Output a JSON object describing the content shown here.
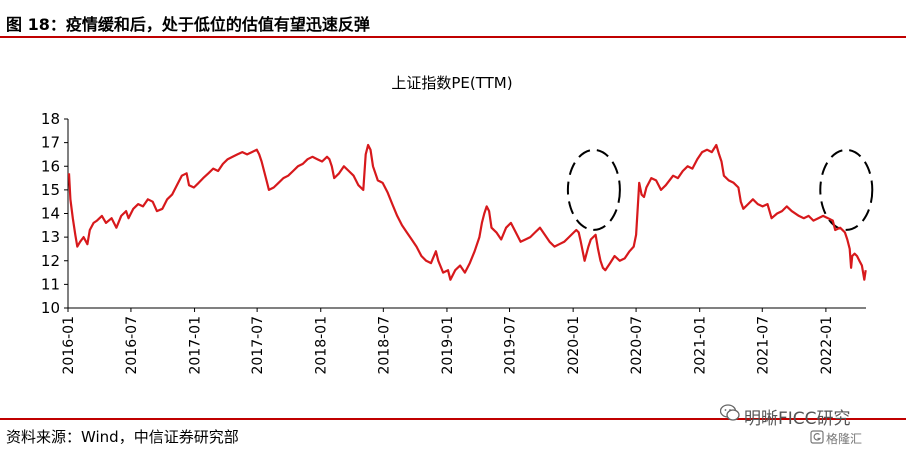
{
  "header": {
    "title": "图 18：疫情缓和后，处于低位的估值有望迅速反弹"
  },
  "footer": {
    "source": "资料来源：Wind，中信证券研究部"
  },
  "watermark": {
    "name": "明晰FICC研究",
    "sub": "格隆汇",
    "icon": "wechat-icon"
  },
  "colors": {
    "accent": "#c00000",
    "line": "#d7191c",
    "axis": "#000000"
  },
  "chart_data": {
    "type": "line",
    "title": "上证指数PE(TTM)",
    "xlabel": "",
    "ylabel": "",
    "ylim": [
      10,
      18
    ],
    "yticks": [
      10,
      11,
      12,
      13,
      14,
      15,
      16,
      17,
      18
    ],
    "xlim": [
      "2016-01",
      "2022-04"
    ],
    "xticks": [
      "2016-01",
      "2016-07",
      "2017-01",
      "2017-07",
      "2018-01",
      "2018-07",
      "2019-01",
      "2019-07",
      "2020-01",
      "2020-07",
      "2021-01",
      "2021-07",
      "2022-01"
    ],
    "grid": false,
    "legend": "none",
    "annotations": [
      {
        "type": "dashed-ellipse",
        "x": "2020-03",
        "y": 15.0
      },
      {
        "type": "dashed-ellipse",
        "x": "2022-03",
        "y": 15.0
      }
    ],
    "series": [
      {
        "name": "",
        "points": [
          [
            "2016-01-04",
            15.7
          ],
          [
            "2016-01-08",
            14.6
          ],
          [
            "2016-01-15",
            13.8
          ],
          [
            "2016-01-22",
            13.1
          ],
          [
            "2016-01-28",
            12.6
          ],
          [
            "2016-02-05",
            12.8
          ],
          [
            "2016-02-15",
            13.0
          ],
          [
            "2016-02-26",
            12.7
          ],
          [
            "2016-03-04",
            13.3
          ],
          [
            "2016-03-15",
            13.6
          ],
          [
            "2016-03-25",
            13.7
          ],
          [
            "2016-04-08",
            13.9
          ],
          [
            "2016-04-20",
            13.6
          ],
          [
            "2016-05-06",
            13.8
          ],
          [
            "2016-05-20",
            13.4
          ],
          [
            "2016-06-03",
            13.9
          ],
          [
            "2016-06-17",
            14.1
          ],
          [
            "2016-06-24",
            13.8
          ],
          [
            "2016-07-08",
            14.2
          ],
          [
            "2016-07-22",
            14.4
          ],
          [
            "2016-08-05",
            14.3
          ],
          [
            "2016-08-19",
            14.6
          ],
          [
            "2016-09-02",
            14.5
          ],
          [
            "2016-09-14",
            14.1
          ],
          [
            "2016-09-30",
            14.2
          ],
          [
            "2016-10-14",
            14.6
          ],
          [
            "2016-10-28",
            14.8
          ],
          [
            "2016-11-11",
            15.2
          ],
          [
            "2016-11-25",
            15.6
          ],
          [
            "2016-12-09",
            15.7
          ],
          [
            "2016-12-16",
            15.2
          ],
          [
            "2016-12-30",
            15.1
          ],
          [
            "2017-01-13",
            15.3
          ],
          [
            "2017-01-26",
            15.5
          ],
          [
            "2017-02-10",
            15.7
          ],
          [
            "2017-02-24",
            15.9
          ],
          [
            "2017-03-10",
            15.8
          ],
          [
            "2017-03-24",
            16.1
          ],
          [
            "2017-04-07",
            16.3
          ],
          [
            "2017-04-21",
            16.4
          ],
          [
            "2017-05-05",
            16.5
          ],
          [
            "2017-05-19",
            16.6
          ],
          [
            "2017-06-02",
            16.5
          ],
          [
            "2017-06-16",
            16.6
          ],
          [
            "2017-06-30",
            16.7
          ],
          [
            "2017-07-07",
            16.5
          ],
          [
            "2017-07-14",
            16.2
          ],
          [
            "2017-07-28",
            15.4
          ],
          [
            "2017-08-04",
            15.0
          ],
          [
            "2017-08-18",
            15.1
          ],
          [
            "2017-09-01",
            15.3
          ],
          [
            "2017-09-15",
            15.5
          ],
          [
            "2017-09-29",
            15.6
          ],
          [
            "2017-10-13",
            15.8
          ],
          [
            "2017-10-27",
            16.0
          ],
          [
            "2017-11-10",
            16.1
          ],
          [
            "2017-11-24",
            16.3
          ],
          [
            "2017-12-08",
            16.4
          ],
          [
            "2017-12-22",
            16.3
          ],
          [
            "2018-01-05",
            16.2
          ],
          [
            "2018-01-19",
            16.4
          ],
          [
            "2018-01-26",
            16.3
          ],
          [
            "2018-02-02",
            16.0
          ],
          [
            "2018-02-09",
            15.5
          ],
          [
            "2018-02-23",
            15.7
          ],
          [
            "2018-03-09",
            16.0
          ],
          [
            "2018-03-23",
            15.8
          ],
          [
            "2018-04-06",
            15.6
          ],
          [
            "2018-04-20",
            15.2
          ],
          [
            "2018-05-04",
            15.0
          ],
          [
            "2018-05-11",
            16.5
          ],
          [
            "2018-05-18",
            16.9
          ],
          [
            "2018-05-25",
            16.7
          ],
          [
            "2018-06-01",
            16.0
          ],
          [
            "2018-06-15",
            15.4
          ],
          [
            "2018-06-29",
            15.3
          ],
          [
            "2018-07-13",
            14.9
          ],
          [
            "2018-07-27",
            14.4
          ],
          [
            "2018-08-10",
            13.9
          ],
          [
            "2018-08-24",
            13.5
          ],
          [
            "2018-09-07",
            13.2
          ],
          [
            "2018-09-21",
            12.9
          ],
          [
            "2018-10-05",
            12.6
          ],
          [
            "2018-10-19",
            12.2
          ],
          [
            "2018-11-02",
            12.0
          ],
          [
            "2018-11-16",
            11.9
          ],
          [
            "2018-11-30",
            12.4
          ],
          [
            "2018-12-07",
            12.0
          ],
          [
            "2018-12-21",
            11.5
          ],
          [
            "2019-01-04",
            11.6
          ],
          [
            "2019-01-11",
            11.2
          ],
          [
            "2019-01-25",
            11.6
          ],
          [
            "2019-02-08",
            11.8
          ],
          [
            "2019-02-22",
            11.5
          ],
          [
            "2019-03-08",
            11.9
          ],
          [
            "2019-03-22",
            12.4
          ],
          [
            "2019-04-05",
            13.0
          ],
          [
            "2019-04-12",
            13.6
          ],
          [
            "2019-04-19",
            14.0
          ],
          [
            "2019-04-26",
            14.3
          ],
          [
            "2019-05-03",
            14.1
          ],
          [
            "2019-05-10",
            13.4
          ],
          [
            "2019-05-24",
            13.2
          ],
          [
            "2019-06-07",
            12.9
          ],
          [
            "2019-06-21",
            13.4
          ],
          [
            "2019-07-05",
            13.6
          ],
          [
            "2019-07-19",
            13.2
          ],
          [
            "2019-08-02",
            12.8
          ],
          [
            "2019-08-16",
            12.9
          ],
          [
            "2019-08-30",
            13.0
          ],
          [
            "2019-09-13",
            13.2
          ],
          [
            "2019-09-27",
            13.4
          ],
          [
            "2019-10-11",
            13.1
          ],
          [
            "2019-10-25",
            12.8
          ],
          [
            "2019-11-08",
            12.6
          ],
          [
            "2019-11-22",
            12.7
          ],
          [
            "2019-12-06",
            12.8
          ],
          [
            "2019-12-20",
            13.0
          ],
          [
            "2020-01-03",
            13.2
          ],
          [
            "2020-01-10",
            13.3
          ],
          [
            "2020-01-17",
            13.2
          ],
          [
            "2020-01-23",
            12.8
          ],
          [
            "2020-02-03",
            12.0
          ],
          [
            "2020-02-14",
            12.6
          ],
          [
            "2020-02-21",
            12.9
          ],
          [
            "2020-02-28",
            13.0
          ],
          [
            "2020-03-06",
            13.1
          ],
          [
            "2020-03-13",
            12.5
          ],
          [
            "2020-03-20",
            12.0
          ],
          [
            "2020-03-27",
            11.7
          ],
          [
            "2020-04-03",
            11.6
          ],
          [
            "2020-04-17",
            11.9
          ],
          [
            "2020-04-30",
            12.2
          ],
          [
            "2020-05-15",
            12.0
          ],
          [
            "2020-05-29",
            12.1
          ],
          [
            "2020-06-12",
            12.4
          ],
          [
            "2020-06-24",
            12.6
          ],
          [
            "2020-07-01",
            13.1
          ],
          [
            "2020-07-07",
            14.5
          ],
          [
            "2020-07-10",
            15.3
          ],
          [
            "2020-07-17",
            14.8
          ],
          [
            "2020-07-24",
            14.7
          ],
          [
            "2020-07-31",
            15.1
          ],
          [
            "2020-08-14",
            15.5
          ],
          [
            "2020-08-28",
            15.4
          ],
          [
            "2020-09-11",
            15.0
          ],
          [
            "2020-09-25",
            15.2
          ],
          [
            "2020-10-16",
            15.6
          ],
          [
            "2020-10-30",
            15.5
          ],
          [
            "2020-11-13",
            15.8
          ],
          [
            "2020-11-27",
            16.0
          ],
          [
            "2020-12-11",
            15.9
          ],
          [
            "2020-12-25",
            16.3
          ],
          [
            "2021-01-08",
            16.6
          ],
          [
            "2021-01-22",
            16.7
          ],
          [
            "2021-02-05",
            16.6
          ],
          [
            "2021-02-18",
            16.9
          ],
          [
            "2021-02-26",
            16.5
          ],
          [
            "2021-03-05",
            16.2
          ],
          [
            "2021-03-12",
            15.6
          ],
          [
            "2021-03-26",
            15.4
          ],
          [
            "2021-04-09",
            15.3
          ],
          [
            "2021-04-23",
            15.1
          ],
          [
            "2021-04-30",
            14.5
          ],
          [
            "2021-05-07",
            14.2
          ],
          [
            "2021-05-21",
            14.4
          ],
          [
            "2021-06-04",
            14.6
          ],
          [
            "2021-06-18",
            14.4
          ],
          [
            "2021-07-02",
            14.3
          ],
          [
            "2021-07-16",
            14.4
          ],
          [
            "2021-07-28",
            13.8
          ],
          [
            "2021-08-13",
            14.0
          ],
          [
            "2021-08-27",
            14.1
          ],
          [
            "2021-09-10",
            14.3
          ],
          [
            "2021-09-24",
            14.1
          ],
          [
            "2021-10-15",
            13.9
          ],
          [
            "2021-10-29",
            13.8
          ],
          [
            "2021-11-12",
            13.9
          ],
          [
            "2021-11-26",
            13.7
          ],
          [
            "2021-12-10",
            13.8
          ],
          [
            "2021-12-24",
            13.9
          ],
          [
            "2022-01-07",
            13.8
          ],
          [
            "2022-01-21",
            13.7
          ],
          [
            "2022-01-28",
            13.3
          ],
          [
            "2022-02-11",
            13.4
          ],
          [
            "2022-02-25",
            13.2
          ],
          [
            "2022-03-04",
            12.9
          ],
          [
            "2022-03-11",
            12.5
          ],
          [
            "2022-03-15",
            11.7
          ],
          [
            "2022-03-18",
            12.2
          ],
          [
            "2022-03-25",
            12.3
          ],
          [
            "2022-04-01",
            12.2
          ],
          [
            "2022-04-08",
            12.0
          ],
          [
            "2022-04-15",
            11.8
          ],
          [
            "2022-04-22",
            11.2
          ],
          [
            "2022-04-26",
            11.6
          ]
        ]
      }
    ]
  }
}
